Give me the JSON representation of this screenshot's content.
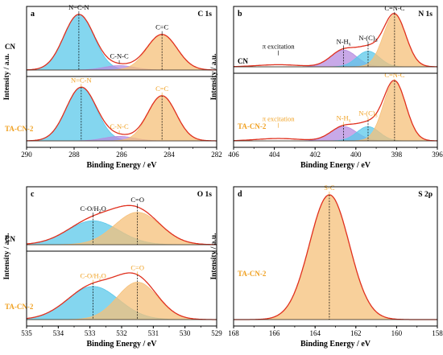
{
  "colors": {
    "envelope": "#e0301e",
    "blue_fill": "#5bc8ea",
    "orange_fill": "#f6c07a",
    "purple_fill": "#b58ce0",
    "orange_text": "#f0a020",
    "axis": "#000000"
  },
  "chart_data": [
    {
      "type": "line",
      "panel_letter": "a",
      "title": "C 1s",
      "xlabel": "Binding Energy / eV",
      "ylabel": "Intensity / a.u.",
      "xlim": [
        290,
        282
      ],
      "xticks": [
        "290",
        "288",
        "286",
        "284",
        "282"
      ],
      "samples": [
        {
          "name": "CN",
          "peaks": [
            {
              "label": "N=C-N",
              "center": 287.8,
              "height": 1.0,
              "fwhm": 1.5,
              "color": "blue_fill"
            },
            {
              "label": "C-N-C",
              "center": 286.1,
              "height": 0.08,
              "fwhm": 1.5,
              "color": "purple_fill"
            },
            {
              "label": "C=C",
              "center": 284.3,
              "height": 0.64,
              "fwhm": 1.5,
              "color": "orange_fill"
            }
          ]
        },
        {
          "name": "TA-CN-2",
          "peaks": [
            {
              "label": "N=C-N",
              "center": 287.7,
              "height": 0.95,
              "fwhm": 1.5,
              "color": "blue_fill"
            },
            {
              "label": "C-N-C",
              "center": 286.1,
              "height": 0.08,
              "fwhm": 1.5,
              "color": "purple_fill"
            },
            {
              "label": "C=C",
              "center": 284.3,
              "height": 0.8,
              "fwhm": 1.4,
              "color": "orange_fill"
            }
          ]
        }
      ]
    },
    {
      "type": "line",
      "panel_letter": "b",
      "title": "N 1s",
      "xlabel": "Binding Energy / eV",
      "ylabel": "Intensity / a.u.",
      "xlim": [
        406,
        396
      ],
      "xticks": [
        "406",
        "404",
        "402",
        "400",
        "398",
        "396"
      ],
      "samples": [
        {
          "name": "CN",
          "peaks": [
            {
              "label": "π excitation",
              "center": 403.8,
              "height": 0.04,
              "fwhm": 2.5,
              "color": "envelope"
            },
            {
              "label": "N-H",
              "label_sub": "x",
              "center": 400.6,
              "height": 0.32,
              "fwhm": 1.5,
              "color": "purple_fill"
            },
            {
              "label": "N-(C)",
              "label_sub": "3",
              "center": 399.4,
              "height": 0.3,
              "fwhm": 1.3,
              "color": "blue_fill"
            },
            {
              "label": "C=N-C",
              "center": 398.1,
              "height": 1.0,
              "fwhm": 1.3,
              "color": "orange_fill"
            }
          ]
        },
        {
          "name": "TA-CN-2",
          "peaks": [
            {
              "label": "π excitation",
              "center": 403.8,
              "height": 0.04,
              "fwhm": 2.5,
              "color": "envelope"
            },
            {
              "label": "N-H",
              "label_sub": "x",
              "center": 400.6,
              "height": 0.24,
              "fwhm": 1.5,
              "color": "purple_fill"
            },
            {
              "label": "N-(C)",
              "label_sub": "3",
              "center": 399.4,
              "height": 0.24,
              "fwhm": 1.3,
              "color": "blue_fill"
            },
            {
              "label": "C=N-C",
              "center": 398.1,
              "height": 1.0,
              "fwhm": 1.3,
              "color": "orange_fill"
            }
          ]
        }
      ]
    },
    {
      "type": "line",
      "panel_letter": "c",
      "title": "O 1s",
      "xlabel": "Binding Energy / eV",
      "ylabel": "Intensity / a.u.",
      "xlim": [
        535,
        529
      ],
      "xticks": [
        "535",
        "534",
        "533",
        "532",
        "531",
        "530",
        "529"
      ],
      "samples": [
        {
          "name": "CN",
          "peaks": [
            {
              "label": "C-O/H",
              "label_sub": "2",
              "label_tail": "O",
              "center": 532.9,
              "height": 0.48,
              "fwhm": 1.9,
              "color": "blue_fill"
            },
            {
              "label": "C=O",
              "center": 531.5,
              "height": 0.65,
              "fwhm": 1.7,
              "color": "orange_fill"
            }
          ]
        },
        {
          "name": "TA-CN-2",
          "peaks": [
            {
              "label": "C-O/H",
              "label_sub": "2",
              "label_tail": "O",
              "center": 532.9,
              "height": 0.55,
              "fwhm": 1.9,
              "color": "blue_fill"
            },
            {
              "label": "C=O",
              "center": 531.5,
              "height": 0.62,
              "fwhm": 1.5,
              "color": "orange_fill"
            }
          ]
        }
      ]
    },
    {
      "type": "line",
      "panel_letter": "d",
      "title": "S 2p",
      "xlabel": "Binding Energy / eV",
      "ylabel": "Intensity / a.u.",
      "xlim": [
        168,
        158
      ],
      "xticks": [
        "168",
        "166",
        "164",
        "162",
        "160",
        "158"
      ],
      "samples": [
        {
          "name": "TA-CN-2",
          "peaks": [
            {
              "label": "S-C",
              "center": 163.3,
              "height": 1.0,
              "fwhm": 2.3,
              "color": "orange_fill"
            }
          ]
        }
      ]
    }
  ]
}
